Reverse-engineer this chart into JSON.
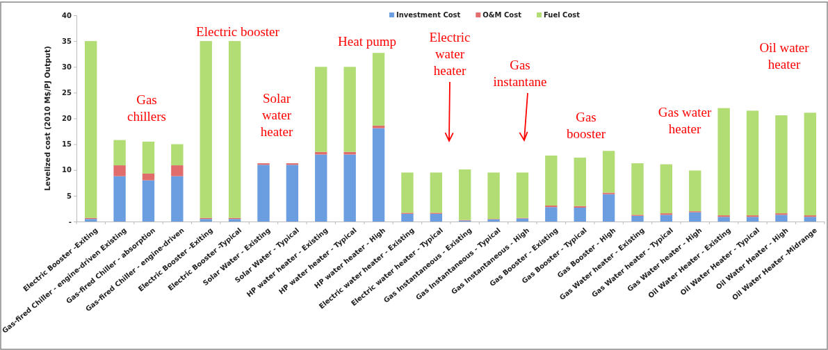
{
  "chart_data": {
    "type": "bar",
    "stacked": true,
    "ylabel": "Levelized cost (2010 M$/PJ Output)",
    "categories": [
      "Electric Booster -Exiting",
      "Gas-fired Chiller - engine-driven Existing",
      "Gas-fired Chiller - absorption",
      "Gas-fired Chiller - engine-driven",
      "Electric Booster -Exiting",
      "Electric Booster -Typical",
      "Solar Water - Existing",
      "Solar Water - Typical",
      "HP water heater - Existing",
      "HP water heater - Typical",
      "HP water heater - High",
      "Electric water heater - Existing",
      "Electric water heater - Typical",
      "Gas Instantaneous - Existing",
      "Gas Instantaneous - Typical",
      "Gas Instantaneous - High",
      "Gas Booster - Existing",
      "Gas Booster - Typical",
      "Gas Booster - High",
      "Gas Water heater - Existing",
      "Gas Water heater - Typical",
      "Gas Water heater - High",
      "Oil Water Heater - Existing",
      "Oil Water Heater - Typical",
      "Oil Water Heater - High",
      "Oil Water Heater -Midrange"
    ],
    "series": [
      {
        "name": "Investment Cost",
        "color": "#6a9ee0",
        "values": [
          0.5,
          8.8,
          8.0,
          8.8,
          0.5,
          0.5,
          11.0,
          11.0,
          13.0,
          13.0,
          18.1,
          1.5,
          1.5,
          0.2,
          0.4,
          0.6,
          2.8,
          2.7,
          5.3,
          1.1,
          1.3,
          1.8,
          0.9,
          0.9,
          1.3,
          0.9
        ]
      },
      {
        "name": "O&M Cost",
        "color": "#e06c6c",
        "values": [
          0.2,
          2.1,
          1.3,
          2.1,
          0.2,
          0.2,
          0.3,
          0.3,
          0.5,
          0.5,
          0.5,
          0.2,
          0.2,
          0.1,
          0.1,
          0.1,
          0.3,
          0.3,
          0.3,
          0.2,
          0.3,
          0.2,
          0.3,
          0.3,
          0.3,
          0.3
        ]
      },
      {
        "name": "Fuel Cost",
        "color": "#b2dc74",
        "values": [
          34.3,
          4.9,
          6.2,
          4.1,
          34.3,
          34.3,
          0,
          0,
          16.5,
          16.5,
          14.1,
          7.8,
          7.8,
          9.8,
          9.0,
          8.8,
          9.7,
          9.4,
          8.1,
          10.0,
          9.5,
          7.9,
          20.8,
          20.3,
          19.0,
          19.9
        ]
      }
    ],
    "ylim": [
      0,
      40
    ],
    "yticks": [
      {
        "value": 0,
        "label": "-"
      },
      5,
      10,
      15,
      20,
      25,
      30,
      35,
      40
    ],
    "grid": false,
    "legend": "top",
    "annotations": [
      "Gas chillers",
      "Electric booster",
      "Solar water heater",
      "Heat pump",
      "Electric water heater",
      "Gas instantane",
      "Gas booster",
      "Gas water heater",
      "Oil water heater"
    ]
  }
}
